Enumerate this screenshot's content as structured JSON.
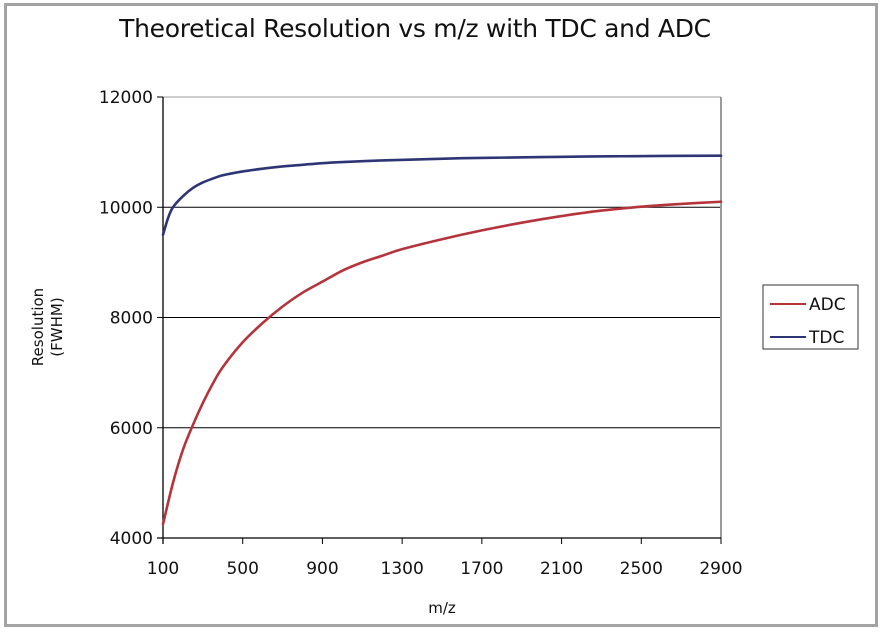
{
  "chart_data": {
    "type": "line",
    "title": "Theoretical Resolution vs m/z with TDC and ADC",
    "xlabel": "m/z",
    "ylabel": [
      "Resolution",
      "(FWHM)"
    ],
    "xlim": [
      100,
      2900
    ],
    "ylim": [
      4000,
      12000
    ],
    "x_ticks": [
      100,
      500,
      900,
      1300,
      1700,
      2100,
      2500,
      2900
    ],
    "x_tick_labels": [
      "100",
      "500",
      "900",
      "1300",
      "1700",
      "2100",
      "2500",
      "2900"
    ],
    "y_ticks": [
      4000,
      6000,
      8000,
      10000,
      12000
    ],
    "y_tick_labels": [
      "4000",
      "6000",
      "8000",
      "10000",
      "12000"
    ],
    "grid": "horizontal",
    "legend_position": "right",
    "series": [
      {
        "name": "ADC",
        "color": "#b5343c",
        "x": [
          100,
          150,
          200,
          250,
          300,
          350,
          400,
          500,
          600,
          700,
          800,
          900,
          1000,
          1100,
          1200,
          1300,
          1500,
          1700,
          1900,
          2100,
          2300,
          2500,
          2700,
          2900
        ],
        "y": [
          4250,
          5000,
          5600,
          6050,
          6450,
          6800,
          7100,
          7550,
          7900,
          8200,
          8450,
          8650,
          8850,
          9000,
          9120,
          9240,
          9420,
          9580,
          9720,
          9840,
          9940,
          10010,
          10060,
          10100
        ]
      },
      {
        "name": "TDC",
        "color": "#2e3575",
        "x": [
          100,
          125,
          150,
          200,
          250,
          300,
          350,
          400,
          500,
          600,
          700,
          800,
          900,
          1000,
          1200,
          1400,
          1600,
          1800,
          2000,
          2200,
          2400,
          2600,
          2900
        ],
        "y": [
          9500,
          9800,
          10000,
          10200,
          10350,
          10450,
          10520,
          10580,
          10650,
          10700,
          10740,
          10770,
          10800,
          10820,
          10850,
          10870,
          10890,
          10900,
          10910,
          10920,
          10925,
          10930,
          10935
        ]
      }
    ]
  }
}
